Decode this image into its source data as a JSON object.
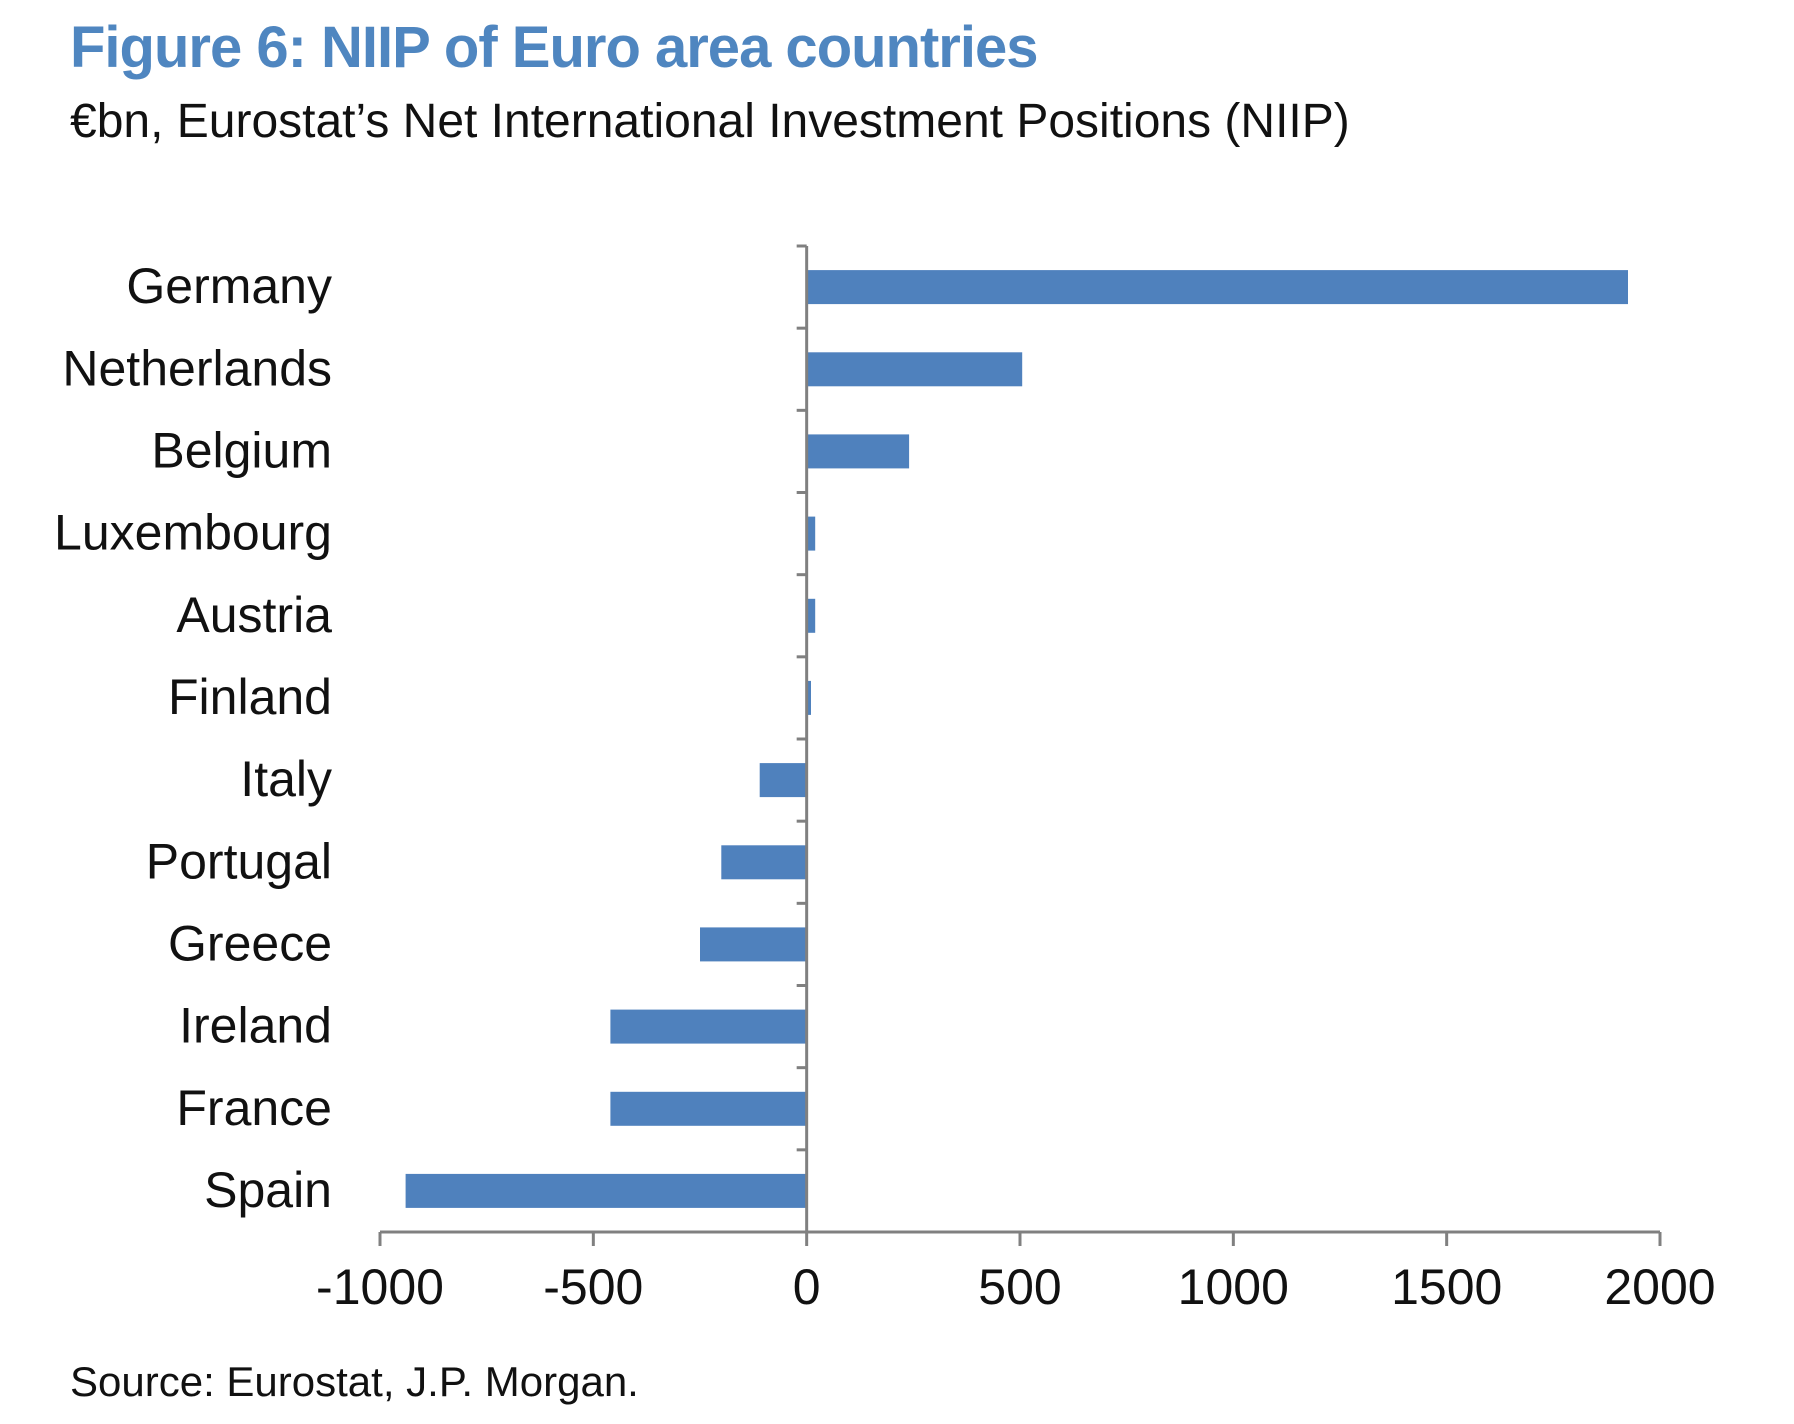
{
  "figure": {
    "title": "Figure 6: NIIP of Euro area countries",
    "subtitle": "€bn, Eurostat’s Net International Investment Positions (NIIP)",
    "source": "Source: Eurostat, J.P. Morgan."
  },
  "colors": {
    "bar": "#4f81bd",
    "title": "#4f86c0",
    "axis": "#808080"
  },
  "chart_data": {
    "type": "bar",
    "orientation": "horizontal",
    "title": "Figure 6: NIIP of Euro area countries",
    "subtitle": "€bn, Eurostat’s Net International Investment Positions (NIIP)",
    "xlabel": "",
    "ylabel": "",
    "categories": [
      "Germany",
      "Netherlands",
      "Belgium",
      "Luxembourg",
      "Austria",
      "Finland",
      "Italy",
      "Portugal",
      "Greece",
      "Ireland",
      "France",
      "Spain"
    ],
    "series": [
      {
        "name": "NIIP (€bn)",
        "values": [
          1925,
          505,
          240,
          20,
          20,
          10,
          -110,
          -200,
          -250,
          -460,
          -460,
          -940
        ]
      }
    ],
    "xlim": [
      -1000,
      2000
    ],
    "xticks": [
      -1000,
      -500,
      0,
      500,
      1000,
      1500,
      2000
    ],
    "xtick_labels": [
      "-1000",
      "-500",
      "0",
      "500",
      "1000",
      "1500",
      "2000"
    ],
    "grid": false,
    "legend": "none"
  }
}
